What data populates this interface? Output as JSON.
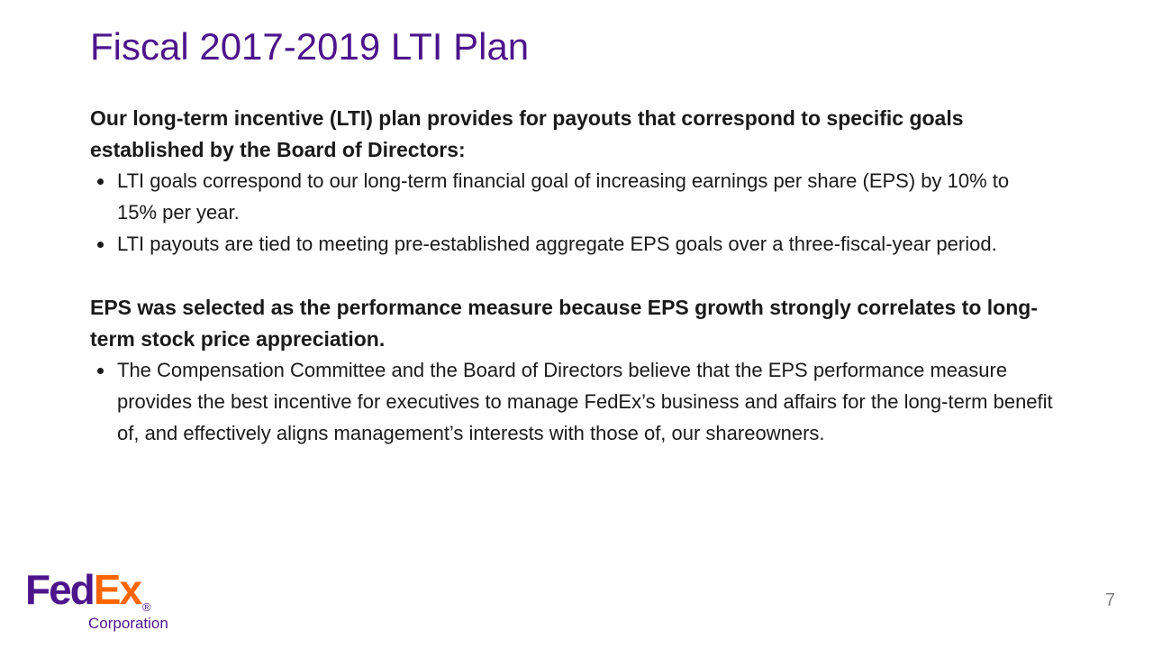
{
  "slide": {
    "title": "Fiscal 2017-2019 LTI Plan",
    "sections": [
      {
        "heading": "Our long-term incentive (LTI) plan provides for payouts that correspond to specific goals established by the Board of Directors:",
        "bullets": [
          "LTI goals correspond to our long-term financial goal of increasing earnings per share (EPS) by 10% to 15% per year.",
          "LTI payouts are tied to meeting pre-established aggregate EPS goals over a three-fiscal-year period."
        ]
      },
      {
        "heading": "EPS was selected as the performance measure because EPS growth strongly correlates to long-term stock price appreciation.",
        "bullets": [
          "The Compensation Committee and the Board of Directors believe that the EPS performance measure provides the best incentive for executives to manage FedEx’s business and affairs for the long-term benefit of, and effectively aligns management’s interests with those of, our shareowners."
        ]
      }
    ],
    "logo": {
      "part1": "Fed",
      "part2": "Ex",
      "registered": "®",
      "subtext": "Corporation"
    },
    "page_number": "7",
    "colors": {
      "title_purple": "#4D148C",
      "logo_purple": "#4D148C",
      "logo_orange": "#FF6600",
      "body_text": "#1a1a1a",
      "page_number_gray": "#808080"
    }
  }
}
